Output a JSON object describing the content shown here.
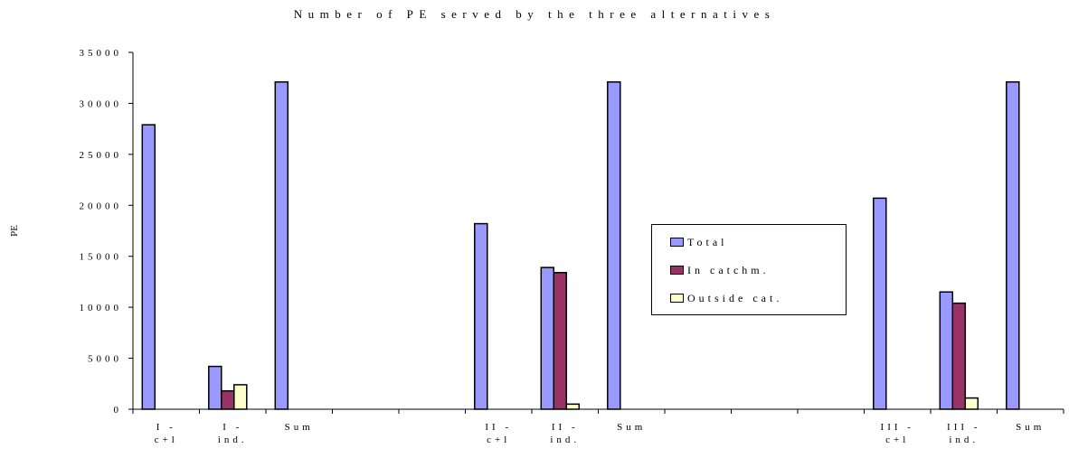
{
  "chart_data": {
    "type": "bar",
    "title": "Number of PE served by the three alternatives",
    "ylabel": "PE",
    "xlabel": "",
    "ylim": [
      0,
      35000
    ],
    "yticks": [
      0,
      5000,
      10000,
      15000,
      20000,
      25000,
      30000,
      35000
    ],
    "grid": false,
    "legend_position": "right-center",
    "categories": [
      [
        "I -",
        "c+l"
      ],
      [
        "I -",
        "ind."
      ],
      [
        "Sum"
      ],
      [
        ""
      ],
      [
        ""
      ],
      [
        "II -",
        "c+l"
      ],
      [
        "II -",
        "ind."
      ],
      [
        "Sum"
      ],
      [
        ""
      ],
      [
        ""
      ],
      [
        ""
      ],
      [
        "III -",
        "c+l"
      ],
      [
        "III -",
        "ind."
      ],
      [
        "Sum"
      ]
    ],
    "series": [
      {
        "name": "Total",
        "color": "#9999ff",
        "values": [
          27900,
          4200,
          32100,
          null,
          null,
          18200,
          13900,
          32100,
          null,
          null,
          null,
          20700,
          11500,
          32100
        ]
      },
      {
        "name": "In catchm.",
        "color": "#993366",
        "values": [
          null,
          1800,
          null,
          null,
          null,
          null,
          13400,
          null,
          null,
          null,
          null,
          null,
          10400,
          null
        ]
      },
      {
        "name": "Outside cat.",
        "color": "#ffffcc",
        "values": [
          null,
          2400,
          null,
          null,
          null,
          null,
          500,
          null,
          null,
          null,
          null,
          null,
          1100,
          null
        ]
      }
    ]
  }
}
